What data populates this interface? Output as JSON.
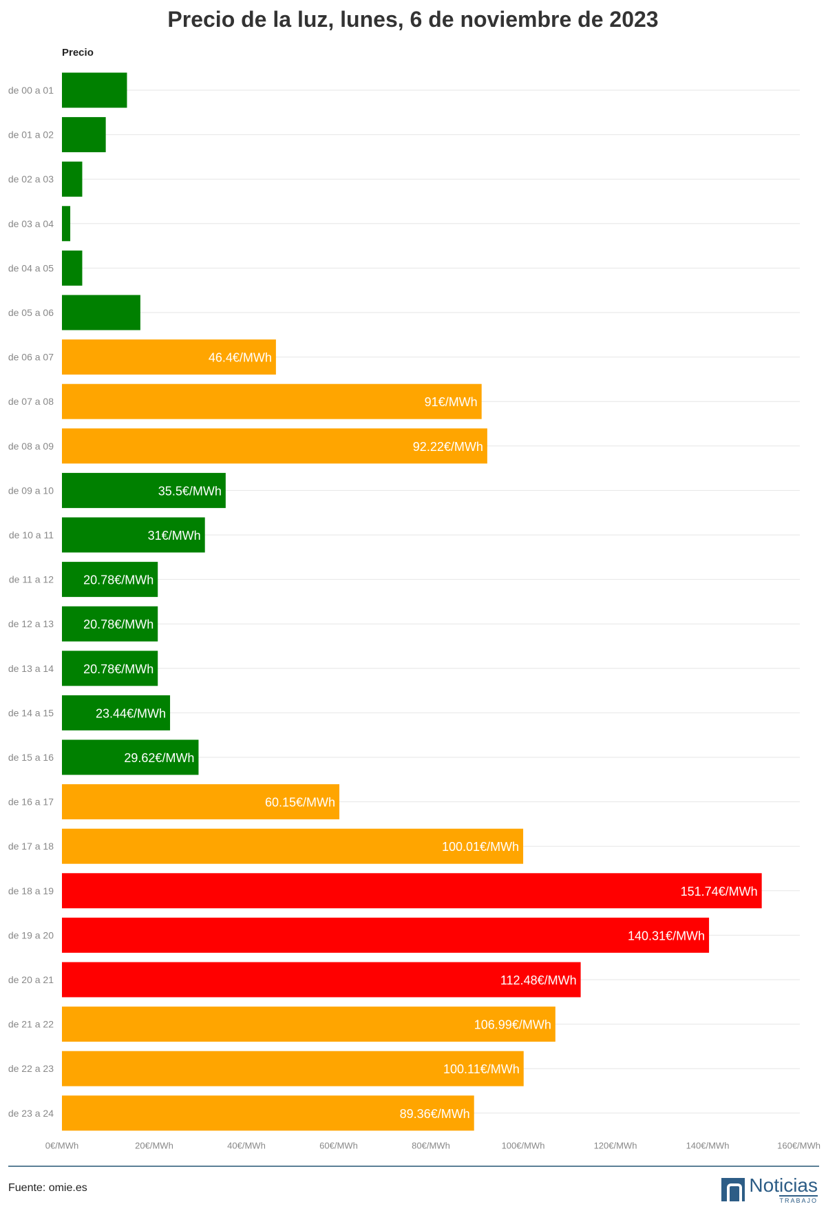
{
  "chart_data": {
    "type": "bar",
    "orientation": "horizontal",
    "title": "Precio de la luz, lunes, 6 de noviembre de 2023",
    "ylabel": "Precio",
    "categories": [
      "de 00 a 01",
      "de 01 a 02",
      "de 02 a 03",
      "de 03 a 04",
      "de 04 a 05",
      "de 05 a 06",
      "de 06 a 07",
      "de 07 a 08",
      "de 08 a 09",
      "de 09 a 10",
      "de 10 a 11",
      "de 11 a 12",
      "de 12 a 13",
      "de 13 a 14",
      "de 14 a 15",
      "de 15 a 16",
      "de 16 a 17",
      "de 17 a 18",
      "de 18 a 19",
      "de 19 a 20",
      "de 20 a 21",
      "de 21 a 22",
      "de 22 a 23",
      "de 23 a 24"
    ],
    "values": [
      14.1,
      9.5,
      4.4,
      1.8,
      4.4,
      17.0,
      46.4,
      91,
      92.22,
      35.5,
      31,
      20.78,
      20.78,
      20.78,
      23.44,
      29.62,
      60.15,
      100.01,
      151.74,
      140.31,
      112.48,
      106.99,
      100.11,
      89.36
    ],
    "data_labels": [
      "",
      "",
      "",
      "",
      "",
      "",
      "46.4€/MWh",
      "91€/MWh",
      "92.22€/MWh",
      "35.5€/MWh",
      "31€/MWh",
      "20.78€/MWh",
      "20.78€/MWh",
      "20.78€/MWh",
      "23.44€/MWh",
      "29.62€/MWh",
      "60.15€/MWh",
      "100.01€/MWh",
      "151.74€/MWh",
      "140.31€/MWh",
      "112.48€/MWh",
      "106.99€/MWh",
      "100.11€/MWh",
      "89.36€/MWh"
    ],
    "colors": [
      "#008000",
      "#008000",
      "#008000",
      "#008000",
      "#008000",
      "#008000",
      "#FFA500",
      "#FFA500",
      "#FFA500",
      "#008000",
      "#008000",
      "#008000",
      "#008000",
      "#008000",
      "#008000",
      "#008000",
      "#FFA500",
      "#FFA500",
      "#FF0000",
      "#FF0000",
      "#FF0000",
      "#FFA500",
      "#FFA500",
      "#FFA500"
    ],
    "xlim": [
      0,
      160
    ],
    "xticks": [
      0,
      20,
      40,
      60,
      80,
      100,
      120,
      140,
      160
    ],
    "xtick_labels": [
      "0€/MWh",
      "20€/MWh",
      "40€/MWh",
      "60€/MWh",
      "80€/MWh",
      "100€/MWh",
      "120€/MWh",
      "140€/MWh",
      "160€/MWh"
    ],
    "grid": true,
    "legend": "none"
  },
  "footer": {
    "source": "Fuente: omie.es",
    "logo_name": "Noticias",
    "logo_sub": "TRABAJO",
    "logo_icon": "noticias-trabajo-logo-icon",
    "brand_color": "#2d5d86"
  }
}
